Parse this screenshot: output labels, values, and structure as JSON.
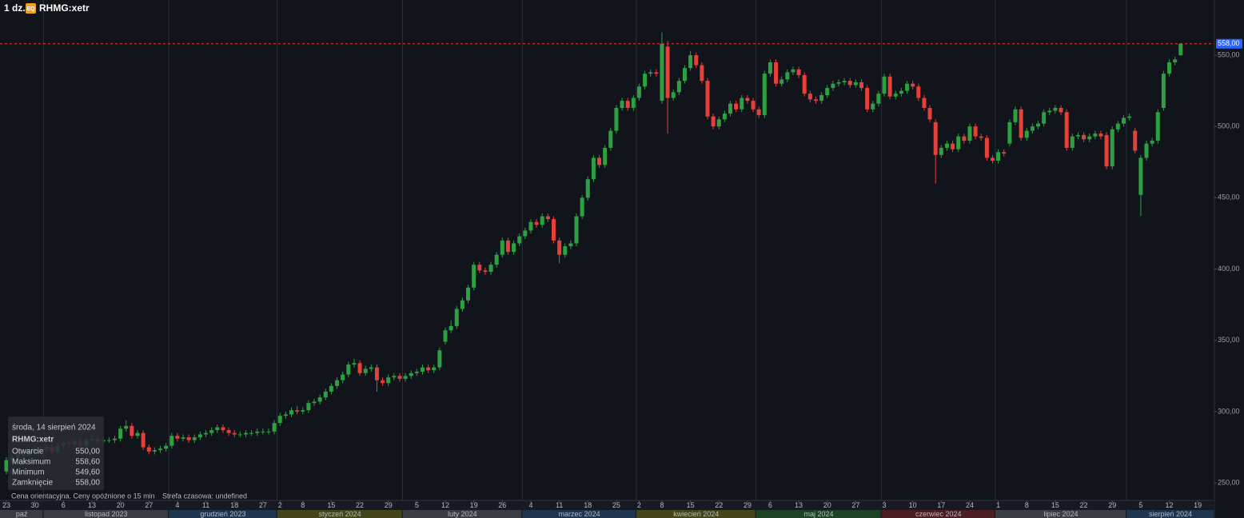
{
  "chart_data": {
    "type": "candlestick",
    "interval": "1 dz.",
    "exchange_badge": "EQ",
    "title": "RHMG:xetr",
    "up_color": "#2ea043",
    "down_color": "#e5403a",
    "x": [
      "2023-10-23",
      "2023-10-24",
      "2023-10-25",
      "2023-10-26",
      "2023-10-27",
      "2023-10-30",
      "2023-10-31",
      "2023-11-01",
      "2023-11-02",
      "2023-11-03",
      "2023-11-06",
      "2023-11-07",
      "2023-11-08",
      "2023-11-09",
      "2023-11-10",
      "2023-11-13",
      "2023-11-14",
      "2023-11-15",
      "2023-11-16",
      "2023-11-17",
      "2023-11-20",
      "2023-11-21",
      "2023-11-22",
      "2023-11-23",
      "2023-11-24",
      "2023-11-27",
      "2023-11-28",
      "2023-11-29",
      "2023-11-30",
      "2023-12-01",
      "2023-12-04",
      "2023-12-05",
      "2023-12-06",
      "2023-12-07",
      "2023-12-08",
      "2023-12-11",
      "2023-12-12",
      "2023-12-13",
      "2023-12-14",
      "2023-12-15",
      "2023-12-18",
      "2023-12-19",
      "2023-12-20",
      "2023-12-21",
      "2023-12-22",
      "2023-12-27",
      "2023-12-28",
      "2023-12-29",
      "2024-01-02",
      "2024-01-03",
      "2024-01-04",
      "2024-01-05",
      "2024-01-08",
      "2024-01-09",
      "2024-01-10",
      "2024-01-11",
      "2024-01-12",
      "2024-01-15",
      "2024-01-16",
      "2024-01-17",
      "2024-01-18",
      "2024-01-19",
      "2024-01-22",
      "2024-01-23",
      "2024-01-24",
      "2024-01-25",
      "2024-01-26",
      "2024-01-29",
      "2024-01-30",
      "2024-01-31",
      "2024-02-01",
      "2024-02-02",
      "2024-02-05",
      "2024-02-06",
      "2024-02-07",
      "2024-02-08",
      "2024-02-09",
      "2024-02-12",
      "2024-02-13",
      "2024-02-14",
      "2024-02-15",
      "2024-02-16",
      "2024-02-19",
      "2024-02-20",
      "2024-02-21",
      "2024-02-22",
      "2024-02-23",
      "2024-02-26",
      "2024-02-27",
      "2024-02-28",
      "2024-02-29",
      "2024-03-01",
      "2024-03-04",
      "2024-03-05",
      "2024-03-06",
      "2024-03-07",
      "2024-03-08",
      "2024-03-11",
      "2024-03-12",
      "2024-03-13",
      "2024-03-14",
      "2024-03-15",
      "2024-03-18",
      "2024-03-19",
      "2024-03-20",
      "2024-03-21",
      "2024-03-22",
      "2024-03-25",
      "2024-03-26",
      "2024-03-27",
      "2024-03-28",
      "2024-04-02",
      "2024-04-03",
      "2024-04-04",
      "2024-04-05",
      "2024-04-08",
      "2024-04-09",
      "2024-04-10",
      "2024-04-11",
      "2024-04-12",
      "2024-04-15",
      "2024-04-16",
      "2024-04-17",
      "2024-04-18",
      "2024-04-19",
      "2024-04-22",
      "2024-04-23",
      "2024-04-24",
      "2024-04-25",
      "2024-04-26",
      "2024-04-29",
      "2024-04-30",
      "2024-05-02",
      "2024-05-03",
      "2024-05-06",
      "2024-05-07",
      "2024-05-08",
      "2024-05-09",
      "2024-05-10",
      "2024-05-13",
      "2024-05-14",
      "2024-05-15",
      "2024-05-16",
      "2024-05-17",
      "2024-05-20",
      "2024-05-21",
      "2024-05-22",
      "2024-05-23",
      "2024-05-24",
      "2024-05-27",
      "2024-05-28",
      "2024-05-29",
      "2024-05-30",
      "2024-05-31",
      "2024-06-03",
      "2024-06-04",
      "2024-06-05",
      "2024-06-06",
      "2024-06-07",
      "2024-06-10",
      "2024-06-11",
      "2024-06-12",
      "2024-06-13",
      "2024-06-14",
      "2024-06-17",
      "2024-06-18",
      "2024-06-19",
      "2024-06-20",
      "2024-06-21",
      "2024-06-24",
      "2024-06-25",
      "2024-06-26",
      "2024-06-27",
      "2024-06-28",
      "2024-07-01",
      "2024-07-02",
      "2024-07-03",
      "2024-07-04",
      "2024-07-05",
      "2024-07-08",
      "2024-07-09",
      "2024-07-10",
      "2024-07-11",
      "2024-07-12",
      "2024-07-15",
      "2024-07-16",
      "2024-07-17",
      "2024-07-18",
      "2024-07-19",
      "2024-07-22",
      "2024-07-23",
      "2024-07-24",
      "2024-07-25",
      "2024-07-26",
      "2024-07-29",
      "2024-07-30",
      "2024-07-31",
      "2024-08-01",
      "2024-08-02",
      "2024-08-05",
      "2024-08-06",
      "2024-08-07",
      "2024-08-08",
      "2024-08-09",
      "2024-08-12",
      "2024-08-13",
      "2024-08-14"
    ],
    "open": [
      258,
      266,
      268,
      270,
      269,
      272,
      274,
      273,
      275,
      272,
      276,
      278,
      277,
      279,
      276,
      280,
      281,
      279,
      280,
      280,
      281,
      288,
      290,
      283,
      285,
      275,
      272,
      273,
      274,
      276,
      283,
      281,
      282,
      280,
      282,
      284,
      285,
      287,
      289,
      287,
      285,
      284,
      284,
      285,
      285,
      286,
      286,
      286,
      292,
      297,
      298,
      301,
      300,
      301,
      306,
      307,
      310,
      314,
      318,
      322,
      326,
      333,
      334,
      327,
      330,
      331,
      322,
      320,
      324,
      325,
      323,
      325,
      327,
      328,
      331,
      329,
      331,
      349,
      357,
      360,
      372,
      378,
      387,
      403,
      399,
      398,
      403,
      410,
      420,
      412,
      418,
      423,
      427,
      433,
      431,
      437,
      435,
      420,
      410,
      416,
      418,
      437,
      450,
      463,
      478,
      473,
      485,
      497,
      513,
      518,
      513,
      520,
      528,
      537,
      538,
      518,
      556,
      520,
      524,
      532,
      541,
      550,
      543,
      532,
      507,
      500,
      505,
      509,
      516,
      512,
      520,
      518,
      512,
      508,
      537,
      545,
      530,
      533,
      538,
      540,
      536,
      523,
      519,
      518,
      522,
      527,
      530,
      531,
      532,
      529,
      531,
      527,
      512,
      516,
      523,
      535,
      521,
      523,
      525,
      530,
      528,
      520,
      513,
      503,
      480,
      485,
      488,
      484,
      493,
      490,
      500,
      493,
      492,
      478,
      476,
      482,
      488,
      503,
      512,
      492,
      497,
      500,
      502,
      510,
      511,
      513,
      510,
      485,
      493,
      494,
      491,
      493,
      495,
      494,
      472,
      498,
      502,
      506,
      497,
      452,
      478,
      488,
      490,
      513,
      537,
      545,
      550
    ],
    "high": [
      268,
      270,
      272,
      272,
      274,
      276,
      276,
      277,
      277,
      278,
      280,
      280,
      281,
      281,
      282,
      283,
      283,
      282,
      282,
      283,
      290,
      294,
      292,
      287,
      287,
      277,
      275,
      276,
      278,
      285,
      285,
      284,
      284,
      284,
      286,
      287,
      289,
      291,
      291,
      289,
      287,
      286,
      287,
      287,
      288,
      288,
      288,
      294,
      299,
      300,
      303,
      304,
      303,
      308,
      309,
      312,
      316,
      320,
      324,
      328,
      335,
      337,
      336,
      332,
      333,
      333,
      324,
      326,
      327,
      327,
      327,
      329,
      330,
      333,
      333,
      333,
      345,
      359,
      364,
      374,
      380,
      389,
      405,
      405,
      401,
      405,
      412,
      422,
      422,
      420,
      425,
      429,
      435,
      435,
      439,
      439,
      437,
      422,
      418,
      420,
      439,
      452,
      465,
      480,
      480,
      487,
      499,
      515,
      520,
      520,
      522,
      530,
      539,
      540,
      540,
      566,
      560,
      526,
      534,
      543,
      553,
      552,
      545,
      534,
      509,
      507,
      511,
      518,
      518,
      522,
      522,
      520,
      514,
      539,
      547,
      547,
      535,
      540,
      542,
      542,
      538,
      525,
      521,
      524,
      529,
      532,
      533,
      534,
      534,
      533,
      533,
      529,
      518,
      525,
      537,
      537,
      525,
      527,
      532,
      532,
      530,
      522,
      515,
      505,
      487,
      490,
      490,
      495,
      495,
      502,
      502,
      495,
      494,
      480,
      484,
      484,
      505,
      514,
      514,
      499,
      502,
      504,
      512,
      513,
      515,
      515,
      512,
      495,
      496,
      496,
      495,
      497,
      497,
      496,
      500,
      504,
      508,
      509,
      499,
      480,
      490,
      492,
      512,
      539,
      547,
      549,
      558.6
    ],
    "low": [
      256,
      264,
      266,
      267,
      267,
      270,
      271,
      271,
      270,
      270,
      274,
      275,
      275,
      274,
      274,
      278,
      277,
      277,
      278,
      278,
      279,
      286,
      281,
      281,
      273,
      270,
      270,
      271,
      272,
      274,
      279,
      279,
      278,
      278,
      280,
      282,
      283,
      285,
      285,
      283,
      282,
      282,
      282,
      283,
      283,
      284,
      284,
      284,
      290,
      295,
      296,
      298,
      298,
      299,
      304,
      305,
      308,
      312,
      316,
      320,
      324,
      331,
      325,
      325,
      328,
      314,
      318,
      318,
      322,
      321,
      321,
      323,
      325,
      326,
      327,
      327,
      329,
      347,
      355,
      358,
      370,
      376,
      385,
      397,
      396,
      396,
      401,
      408,
      410,
      410,
      416,
      421,
      425,
      429,
      429,
      433,
      418,
      404,
      408,
      414,
      416,
      435,
      448,
      461,
      471,
      471,
      483,
      495,
      511,
      511,
      511,
      518,
      526,
      535,
      535,
      516,
      495,
      518,
      522,
      530,
      539,
      541,
      530,
      505,
      498,
      498,
      503,
      507,
      510,
      510,
      516,
      510,
      506,
      506,
      535,
      528,
      528,
      531,
      536,
      534,
      521,
      517,
      516,
      516,
      520,
      525,
      528,
      529,
      527,
      527,
      525,
      510,
      510,
      514,
      521,
      519,
      519,
      521,
      523,
      526,
      518,
      511,
      503,
      460,
      478,
      483,
      482,
      482,
      488,
      488,
      491,
      490,
      476,
      474,
      474,
      479,
      486,
      501,
      490,
      490,
      495,
      498,
      500,
      508,
      509,
      508,
      483,
      483,
      491,
      489,
      489,
      491,
      491,
      470,
      470,
      496,
      500,
      504,
      481,
      437,
      476,
      486,
      488,
      511,
      535,
      543,
      549.6
    ],
    "close": [
      266,
      268,
      270,
      269,
      272,
      274,
      273,
      275,
      272,
      276,
      278,
      277,
      279,
      276,
      280,
      281,
      279,
      280,
      280,
      281,
      288,
      290,
      283,
      285,
      275,
      272,
      273,
      274,
      276,
      283,
      281,
      282,
      280,
      282,
      284,
      285,
      287,
      289,
      287,
      285,
      284,
      284,
      285,
      285,
      286,
      286,
      286,
      292,
      297,
      298,
      301,
      300,
      301,
      306,
      307,
      310,
      314,
      318,
      322,
      326,
      333,
      334,
      327,
      330,
      331,
      322,
      320,
      324,
      325,
      323,
      325,
      327,
      328,
      331,
      329,
      331,
      343,
      357,
      360,
      372,
      378,
      387,
      403,
      399,
      398,
      403,
      410,
      420,
      412,
      418,
      423,
      427,
      433,
      431,
      437,
      435,
      420,
      410,
      416,
      418,
      437,
      450,
      463,
      478,
      473,
      485,
      497,
      513,
      518,
      513,
      520,
      528,
      537,
      538,
      537,
      558,
      520,
      524,
      532,
      541,
      550,
      543,
      532,
      507,
      500,
      505,
      509,
      516,
      512,
      520,
      518,
      512,
      508,
      537,
      545,
      530,
      533,
      538,
      540,
      536,
      523,
      519,
      518,
      522,
      527,
      530,
      531,
      532,
      529,
      531,
      527,
      512,
      516,
      523,
      535,
      521,
      523,
      525,
      530,
      528,
      520,
      513,
      505,
      480,
      485,
      488,
      484,
      493,
      490,
      500,
      493,
      492,
      478,
      476,
      482,
      481,
      503,
      512,
      492,
      497,
      500,
      502,
      510,
      511,
      513,
      510,
      485,
      493,
      494,
      491,
      493,
      495,
      493,
      472,
      498,
      502,
      506,
      507,
      483,
      478,
      488,
      490,
      510,
      537,
      545,
      547,
      558
    ],
    "ylim": [
      237.7,
      588.7
    ],
    "yticks": [
      {
        "value": 250,
        "label": "250,00"
      },
      {
        "value": 300,
        "label": "300,00"
      },
      {
        "value": 350,
        "label": "350,00"
      },
      {
        "value": 400,
        "label": "400,00"
      },
      {
        "value": 450,
        "label": "450,00"
      },
      {
        "value": 500,
        "label": "500,00"
      },
      {
        "value": 550,
        "label": "550,00"
      }
    ],
    "xticks": [
      {
        "value": "2023-10-23",
        "label": "23"
      },
      {
        "value": "2023-10-30",
        "label": "30"
      },
      {
        "value": "2023-11-06",
        "label": "6"
      },
      {
        "value": "2023-11-13",
        "label": "13"
      },
      {
        "value": "2023-11-20",
        "label": "20"
      },
      {
        "value": "2023-11-27",
        "label": "27"
      },
      {
        "value": "2023-12-04",
        "label": "4"
      },
      {
        "value": "2023-12-11",
        "label": "11"
      },
      {
        "value": "2023-12-18",
        "label": "18"
      },
      {
        "value": "2023-12-27",
        "label": "27"
      },
      {
        "value": "2024-01-02",
        "label": "2"
      },
      {
        "value": "2024-01-08",
        "label": "8"
      },
      {
        "value": "2024-01-15",
        "label": "15"
      },
      {
        "value": "2024-01-22",
        "label": "22"
      },
      {
        "value": "2024-01-29",
        "label": "29"
      },
      {
        "value": "2024-02-05",
        "label": "5"
      },
      {
        "value": "2024-02-12",
        "label": "12"
      },
      {
        "value": "2024-02-19",
        "label": "19"
      },
      {
        "value": "2024-02-26",
        "label": "26"
      },
      {
        "value": "2024-03-04",
        "label": "4"
      },
      {
        "value": "2024-03-11",
        "label": "11"
      },
      {
        "value": "2024-03-18",
        "label": "18"
      },
      {
        "value": "2024-03-25",
        "label": "25"
      },
      {
        "value": "2024-04-02",
        "label": "2"
      },
      {
        "value": "2024-04-08",
        "label": "8"
      },
      {
        "value": "2024-04-15",
        "label": "15"
      },
      {
        "value": "2024-04-22",
        "label": "22"
      },
      {
        "value": "2024-04-29",
        "label": "29"
      },
      {
        "value": "2024-05-06",
        "label": "6"
      },
      {
        "value": "2024-05-13",
        "label": "13"
      },
      {
        "value": "2024-05-20",
        "label": "20"
      },
      {
        "value": "2024-05-27",
        "label": "27"
      },
      {
        "value": "2024-06-03",
        "label": "3"
      },
      {
        "value": "2024-06-10",
        "label": "10"
      },
      {
        "value": "2024-06-17",
        "label": "17"
      },
      {
        "value": "2024-06-24",
        "label": "24"
      },
      {
        "value": "2024-07-01",
        "label": "1"
      },
      {
        "value": "2024-07-08",
        "label": "8"
      },
      {
        "value": "2024-07-15",
        "label": "15"
      },
      {
        "value": "2024-07-22",
        "label": "22"
      },
      {
        "value": "2024-07-29",
        "label": "29"
      },
      {
        "value": "2024-08-05",
        "label": "5"
      },
      {
        "value": "2024-08-12",
        "label": "12"
      },
      {
        "value": "2024-08-19",
        "label": "19"
      }
    ],
    "months": [
      {
        "value": "2023-10",
        "label": "paź",
        "color": "#3a3c44"
      },
      {
        "value": "2023-11",
        "label": "listopad 2023",
        "color": "#3a3c44"
      },
      {
        "value": "2023-12",
        "label": "grudzień 2023",
        "color": "#1e3550"
      },
      {
        "value": "2024-01",
        "label": "styczeń 2024",
        "color": "#45451c"
      },
      {
        "value": "2024-02",
        "label": "luty 2024",
        "color": "#3a3c44"
      },
      {
        "value": "2024-03",
        "label": "marzec 2024",
        "color": "#1e3550"
      },
      {
        "value": "2024-04",
        "label": "kwiecień 2024",
        "color": "#45451c"
      },
      {
        "value": "2024-05",
        "label": "maj 2024",
        "color": "#1c4424"
      },
      {
        "value": "2024-06",
        "label": "czerwiec 2024",
        "color": "#4a1e22"
      },
      {
        "value": "2024-07",
        "label": "lipiec 2024",
        "color": "#3a3c44"
      },
      {
        "value": "2024-08",
        "label": "sierpień 2024",
        "color": "#1e3550"
      }
    ],
    "last_price": {
      "value": 558,
      "label": "558,00",
      "color": "#e5403a"
    },
    "info": {
      "date": "środa, 14 sierpień 2024",
      "symbol": "RHMG:xetr",
      "rows": [
        {
          "name": "Otwarcie",
          "value": 550,
          "label": "550,00"
        },
        {
          "name": "Maksimum",
          "value": 558.6,
          "label": "558,60"
        },
        {
          "name": "Minimum",
          "value": 549.6,
          "label": "549,60"
        },
        {
          "name": "Zamknięcie",
          "value": 558,
          "label": "558,00"
        }
      ]
    },
    "footer": [
      "Cena orientacyjna. Ceny opóźnione o 15 min",
      "Strefa czasowa: undefined"
    ]
  }
}
